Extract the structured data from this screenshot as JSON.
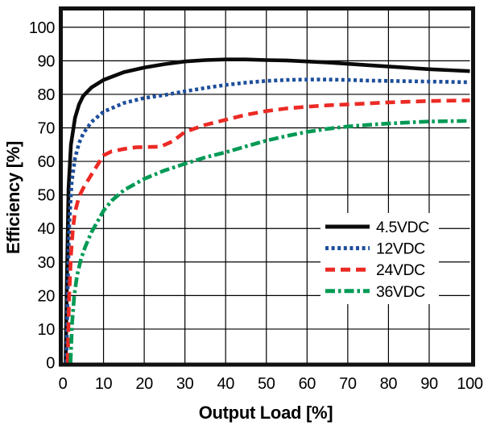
{
  "chart_data": {
    "type": "line",
    "title": "",
    "xlabel": "Output Load [%]",
    "ylabel": "Efficiency [%]",
    "xlim": [
      0,
      100
    ],
    "ylim": [
      0,
      105
    ],
    "grid": true,
    "x_ticks": [
      "0",
      "10",
      "20",
      "30",
      "40",
      "50",
      "60",
      "70",
      "80",
      "90",
      "100"
    ],
    "y_ticks": [
      "0",
      "10",
      "20",
      "30",
      "40",
      "50",
      "60",
      "70",
      "80",
      "90",
      "100"
    ],
    "legend": {
      "position": "inside-lower-right"
    },
    "colors": {
      "black_series": "#0a0a0a",
      "blue_series": "#1d4e9b",
      "red_series": "#ec2a24",
      "green_series": "#009a55",
      "grid_line": "#000000",
      "plot_border": "#111111",
      "background": "#ffffff"
    },
    "series": [
      {
        "name": "4.5VDC",
        "style": "solid",
        "color": "#0a0a0a",
        "points": [
          [
            0.7,
            0
          ],
          [
            1,
            25
          ],
          [
            1.4,
            52
          ],
          [
            2,
            65
          ],
          [
            3,
            73
          ],
          [
            4,
            77
          ],
          [
            5,
            79.5
          ],
          [
            7,
            82
          ],
          [
            10,
            84.3
          ],
          [
            15,
            86.6
          ],
          [
            20,
            88
          ],
          [
            25,
            89
          ],
          [
            30,
            89.8
          ],
          [
            35,
            90.2
          ],
          [
            40,
            90.4
          ],
          [
            45,
            90.4
          ],
          [
            50,
            90.2
          ],
          [
            55,
            90.1
          ],
          [
            60,
            89.8
          ],
          [
            65,
            89.5
          ],
          [
            70,
            89.1
          ],
          [
            75,
            88.7
          ],
          [
            80,
            88.3
          ],
          [
            85,
            87.9
          ],
          [
            90,
            87.5
          ],
          [
            95,
            87.2
          ],
          [
            100,
            86.9
          ]
        ]
      },
      {
        "name": "12VDC",
        "style": "dotted",
        "color": "#1d4e9b",
        "points": [
          [
            0.9,
            0
          ],
          [
            1.2,
            22
          ],
          [
            1.6,
            42
          ],
          [
            2.2,
            54
          ],
          [
            3,
            61
          ],
          [
            4,
            65.5
          ],
          [
            5,
            68.3
          ],
          [
            7,
            71.7
          ],
          [
            10,
            74.8
          ],
          [
            15,
            77.4
          ],
          [
            20,
            78.9
          ],
          [
            25,
            79.8
          ],
          [
            30,
            80.9
          ],
          [
            35,
            81.9
          ],
          [
            40,
            82.8
          ],
          [
            45,
            83.5
          ],
          [
            50,
            84
          ],
          [
            55,
            84.3
          ],
          [
            60,
            84.4
          ],
          [
            65,
            84.4
          ],
          [
            70,
            84.3
          ],
          [
            75,
            84.1
          ],
          [
            80,
            84
          ],
          [
            85,
            83.9
          ],
          [
            90,
            83.8
          ],
          [
            95,
            83.7
          ],
          [
            100,
            83.6
          ]
        ]
      },
      {
        "name": "24VDC",
        "style": "dashed",
        "color": "#ec2a24",
        "points": [
          [
            1.2,
            0
          ],
          [
            1.5,
            18
          ],
          [
            2,
            32
          ],
          [
            2.5,
            40
          ],
          [
            3,
            45
          ],
          [
            4,
            49.5
          ],
          [
            5,
            52
          ],
          [
            7,
            56
          ],
          [
            10,
            61.8
          ],
          [
            12,
            63
          ],
          [
            15,
            63.7
          ],
          [
            18,
            64.2
          ],
          [
            21,
            64.3
          ],
          [
            24,
            64.4
          ],
          [
            27,
            66
          ],
          [
            30,
            68.8
          ],
          [
            35,
            70.9
          ],
          [
            40,
            72.4
          ],
          [
            45,
            73.9
          ],
          [
            50,
            75
          ],
          [
            55,
            75.8
          ],
          [
            60,
            76.3
          ],
          [
            65,
            76.7
          ],
          [
            70,
            77
          ],
          [
            75,
            77.3
          ],
          [
            80,
            77.6
          ],
          [
            85,
            77.8
          ],
          [
            90,
            78
          ],
          [
            95,
            78.1
          ],
          [
            100,
            78.2
          ]
        ]
      },
      {
        "name": "36VDC",
        "style": "dashdot",
        "color": "#009a55",
        "points": [
          [
            1.9,
            0
          ],
          [
            2.3,
            12
          ],
          [
            2.8,
            20
          ],
          [
            3.5,
            26
          ],
          [
            4.5,
            31
          ],
          [
            5.5,
            34.5
          ],
          [
            7,
            38.8
          ],
          [
            8.5,
            42
          ],
          [
            10,
            45.3
          ],
          [
            12,
            48.3
          ],
          [
            15,
            51.4
          ],
          [
            20,
            54.8
          ],
          [
            25,
            57.3
          ],
          [
            30,
            59.3
          ],
          [
            35,
            61.2
          ],
          [
            40,
            62.7
          ],
          [
            45,
            64.5
          ],
          [
            50,
            66.2
          ],
          [
            55,
            67.6
          ],
          [
            60,
            68.8
          ],
          [
            65,
            69.7
          ],
          [
            70,
            70.4
          ],
          [
            75,
            70.9
          ],
          [
            80,
            71.3
          ],
          [
            85,
            71.6
          ],
          [
            90,
            71.9
          ],
          [
            95,
            72
          ],
          [
            100,
            72.1
          ]
        ]
      }
    ]
  }
}
